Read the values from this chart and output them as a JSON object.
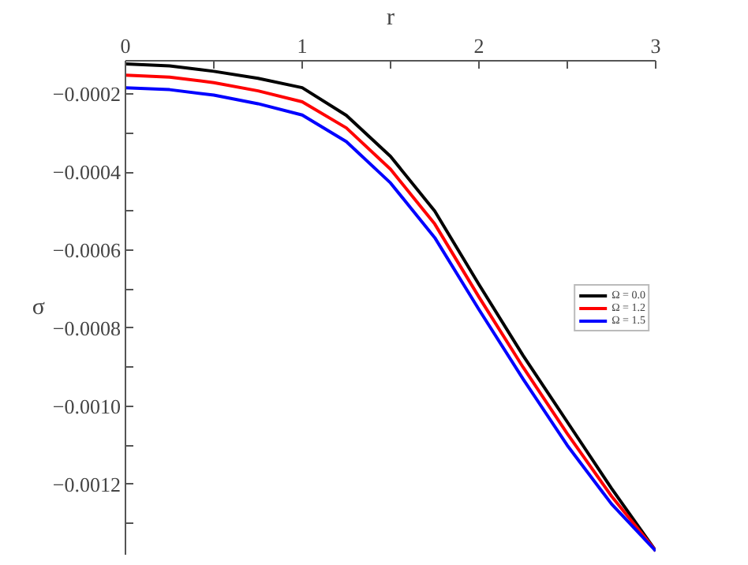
{
  "chart_data": {
    "type": "line",
    "xlabel": "r",
    "ylabel": "σ",
    "x": [
      0,
      0.25,
      0.5,
      0.75,
      1,
      1.25,
      1.5,
      1.75,
      2,
      2.25,
      2.5,
      2.75,
      3
    ],
    "series": [
      {
        "name": "Ω = 0.0",
        "color": "#000000",
        "values": [
          -0.000123,
          -0.000128,
          -0.000142,
          -0.00016,
          -0.000184,
          -0.000255,
          -0.00036,
          -0.0005,
          -0.000688,
          -0.00087,
          -0.00104,
          -0.00121,
          -0.00137
        ]
      },
      {
        "name": "Ω = 1.2",
        "color": "#ff0000",
        "values": [
          -0.000152,
          -0.000157,
          -0.000171,
          -0.000192,
          -0.00022,
          -0.000287,
          -0.000393,
          -0.000533,
          -0.00072,
          -0.0009,
          -0.00107,
          -0.00123,
          -0.00137
        ]
      },
      {
        "name": "Ω = 1.5",
        "color": "#0000ff",
        "values": [
          -0.000184,
          -0.000189,
          -0.000203,
          -0.000225,
          -0.000254,
          -0.000322,
          -0.000428,
          -0.000568,
          -0.000752,
          -0.00093,
          -0.0011,
          -0.00125,
          -0.00137
        ]
      }
    ],
    "xlim": [
      0,
      3
    ],
    "ylim": [
      -0.00138,
      -0.000115
    ],
    "xticks": [
      0,
      {
        "value": 0.5,
        "label": null
      },
      1,
      {
        "value": 1.5,
        "label": null
      },
      2,
      {
        "value": 2.5,
        "label": null
      },
      3
    ],
    "yticks": [
      {
        "value": -0.0002,
        "label": "−0.0002"
      },
      {
        "value": -0.0003,
        "label": null
      },
      {
        "value": -0.0004,
        "label": "−0.0004"
      },
      {
        "value": -0.0005,
        "label": null
      },
      {
        "value": -0.0006,
        "label": "−0.0006"
      },
      {
        "value": -0.0007,
        "label": null
      },
      {
        "value": -0.0008,
        "label": "−0.0008"
      },
      {
        "value": -0.0009,
        "label": null
      },
      {
        "value": -0.001,
        "label": "−0.0010"
      },
      {
        "value": -0.0011,
        "label": null
      },
      {
        "value": -0.0012,
        "label": "−0.0012"
      },
      {
        "value": -0.0013,
        "label": null
      }
    ],
    "grid": false,
    "legend": "right",
    "line_style": "solid"
  }
}
